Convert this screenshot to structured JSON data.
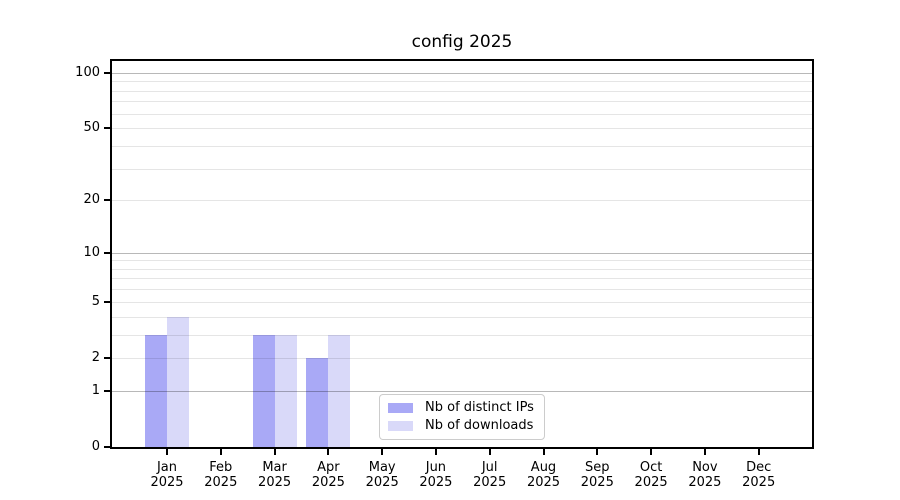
{
  "title": "config 2025",
  "chart_data": {
    "type": "bar",
    "title": "config 2025",
    "categories": [
      "Jan",
      "Feb",
      "Mar",
      "Apr",
      "May",
      "Jun",
      "Jul",
      "Aug",
      "Sep",
      "Oct",
      "Nov",
      "Dec"
    ],
    "category_year": "2025",
    "series": [
      {
        "name": "Nb of distinct IPs",
        "color": "#a9a9f6",
        "values": [
          3,
          0,
          3,
          2,
          0,
          0,
          0,
          0,
          0,
          0,
          0,
          0
        ]
      },
      {
        "name": "Nb of downloads",
        "color": "#d9d9f9",
        "values": [
          4,
          0,
          3,
          3,
          0,
          0,
          0,
          0,
          0,
          0,
          0,
          0
        ]
      }
    ],
    "xlabel": "",
    "ylabel": "",
    "yscale": "log1p",
    "grid": true,
    "y_axis": {
      "ticks": [
        100,
        50,
        20,
        10,
        5,
        2,
        1,
        0
      ],
      "major_decades": [
        1,
        10,
        100
      ],
      "minor_gridline_values": [
        3,
        4,
        6,
        7,
        8,
        9,
        30,
        40,
        60,
        70,
        80,
        90
      ],
      "top_value": 116
    },
    "legend": {
      "position": "lower center",
      "entries": [
        "Nb of distinct IPs",
        "Nb of downloads"
      ]
    }
  }
}
